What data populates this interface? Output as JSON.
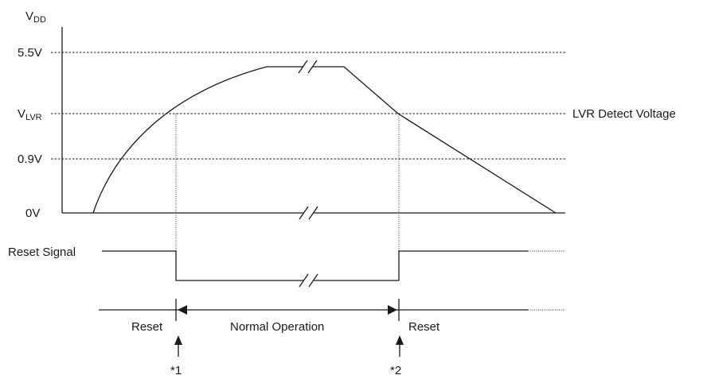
{
  "axis": {
    "title_main": "V",
    "title_sub": "DD",
    "level_high": "5.5V",
    "level_lvr_main": "V",
    "level_lvr_sub": "LVR",
    "level_mid": "0.9V",
    "level_zero": "0V"
  },
  "annotations": {
    "lvr_detect_voltage": "LVR Detect Voltage",
    "reset_signal": "Reset Signal"
  },
  "phases": {
    "reset_left": "Reset",
    "normal_operation": "Normal Operation",
    "reset_right": "Reset"
  },
  "markers": {
    "marker1": "*1",
    "marker2": "*2"
  }
}
